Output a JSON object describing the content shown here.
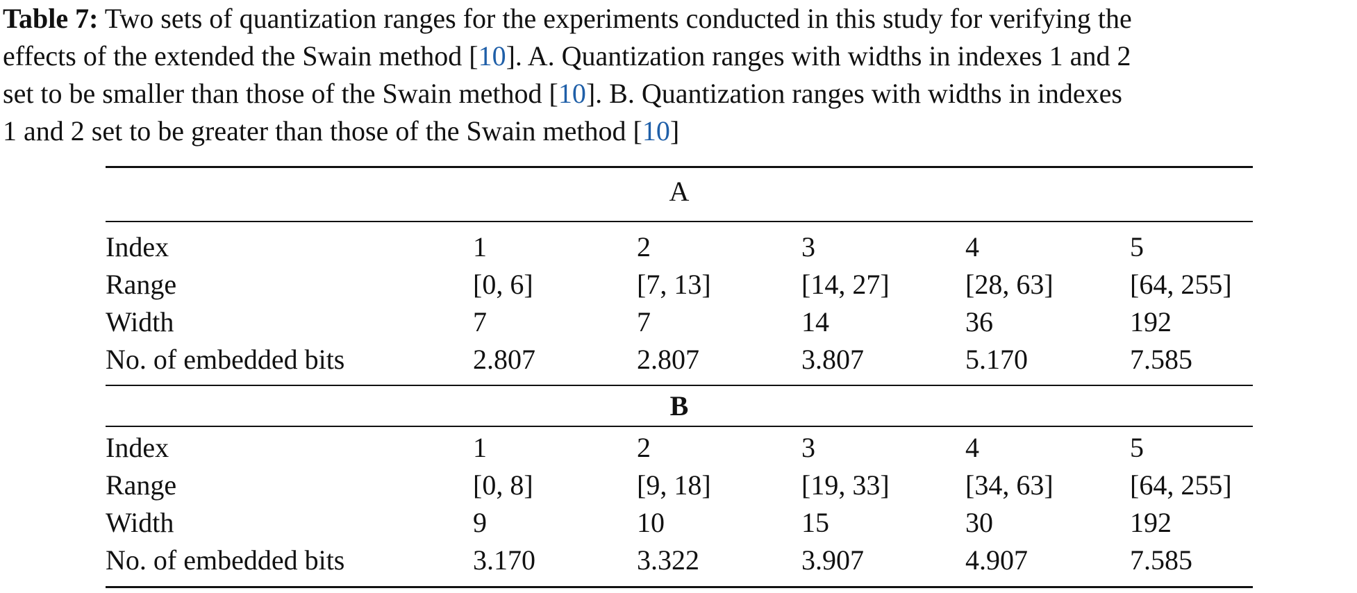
{
  "caption": {
    "label": "Table 7:",
    "line1_text": " Two sets of quantization ranges for the experiments conducted in this study for verifying the",
    "line2_pre": "effects of the extended the Swain method [",
    "line2_ref": "10",
    "line2_post": "]. A. Quantization ranges with widths in indexes 1 and 2",
    "line3_pre": "set to be smaller than those of the Swain method [",
    "line3_ref": "10",
    "line3_post": "]. B. Quantization ranges with widths in indexes",
    "line4_pre": "1 and 2 set to be greater than those of the Swain method [",
    "line4_ref": "10",
    "line4_post": "]"
  },
  "table": {
    "sections": [
      {
        "header": "A",
        "rows": [
          {
            "label": "Index",
            "values": [
              "1",
              "2",
              "3",
              "4",
              "5"
            ]
          },
          {
            "label": "Range",
            "values": [
              "[0, 6]",
              "[7, 13]",
              "[14, 27]",
              "[28, 63]",
              "[64, 255]"
            ]
          },
          {
            "label": "Width",
            "values": [
              "7",
              "7",
              "14",
              "36",
              "192"
            ]
          },
          {
            "label": "No. of embedded bits",
            "values": [
              "2.807",
              "2.807",
              "3.807",
              "5.170",
              "7.585"
            ]
          }
        ]
      },
      {
        "header": "B",
        "rows": [
          {
            "label": "Index",
            "values": [
              "1",
              "2",
              "3",
              "4",
              "5"
            ]
          },
          {
            "label": "Range",
            "values": [
              "[0, 8]",
              "[9, 18]",
              "[19, 33]",
              "[34, 63]",
              "[64, 255]"
            ]
          },
          {
            "label": "Width",
            "values": [
              "9",
              "10",
              "15",
              "30",
              "192"
            ]
          },
          {
            "label": "No. of embedded bits",
            "values": [
              "3.170",
              "3.322",
              "3.907",
              "4.907",
              "7.585"
            ]
          }
        ]
      }
    ]
  }
}
